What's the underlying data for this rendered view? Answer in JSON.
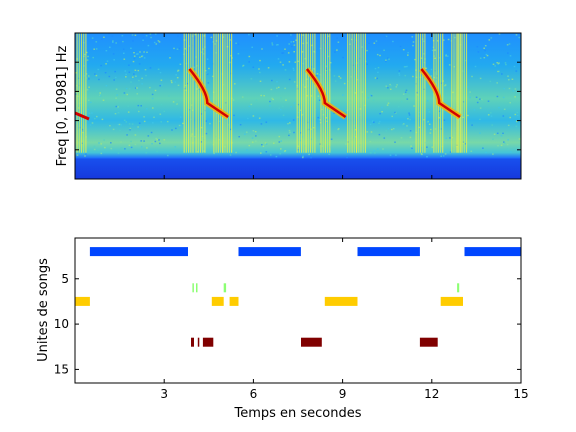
{
  "chart_data": [
    {
      "type": "heatmap",
      "ylabel": "Freq [0, 10981] Hz",
      "xlabel": "",
      "xlim": [
        0,
        15
      ],
      "colormap": "jet",
      "grid": false,
      "description_bands": [
        {
          "note": "blue noise floor at low frequency",
          "freq_range": [
            0.12,
            0.25
          ]
        },
        {
          "note": "red descending chirps (song onsets)",
          "time_starts": [
            3.85,
            7.8,
            11.65
          ]
        }
      ],
      "vertical_event_bursts": [
        0.2,
        3.8,
        4.2,
        4.8,
        5.1,
        7.6,
        7.9,
        8.4,
        9.3,
        9.6,
        11.6,
        12.2,
        12.8,
        13.0
      ]
    },
    {
      "type": "bar",
      "subtype": "event-raster",
      "xlabel": "Temps en secondes",
      "ylabel": "Unites de songs",
      "xlim": [
        0,
        15
      ],
      "ylim": [
        0.5,
        16.5
      ],
      "y_reversed": true,
      "xticks": [
        3,
        6,
        9,
        12,
        15
      ],
      "yticks": [
        5,
        10,
        15
      ],
      "series": [
        {
          "unit": 2,
          "color": "#0046ff",
          "segments": [
            [
              0.5,
              3.8
            ],
            [
              5.5,
              7.6
            ],
            [
              9.5,
              11.6
            ],
            [
              13.1,
              15.0
            ]
          ]
        },
        {
          "unit": 6,
          "color": "#8cff73",
          "segments": [
            [
              3.95,
              4.0
            ],
            [
              4.07,
              4.12
            ],
            [
              5.0,
              5.08
            ],
            [
              12.85,
              12.92
            ]
          ]
        },
        {
          "unit": 7.5,
          "color": "#ffcc00",
          "segments": [
            [
              0.0,
              0.5
            ],
            [
              4.6,
              5.0
            ],
            [
              5.2,
              5.5
            ],
            [
              8.4,
              9.5
            ],
            [
              12.3,
              13.0
            ],
            [
              13.0,
              13.05
            ]
          ]
        },
        {
          "unit": 12,
          "color": "#800000",
          "segments": [
            [
              3.9,
              4.0
            ],
            [
              4.13,
              4.17
            ],
            [
              4.3,
              4.65
            ],
            [
              7.6,
              8.3
            ],
            [
              11.6,
              12.2
            ]
          ]
        }
      ]
    }
  ]
}
